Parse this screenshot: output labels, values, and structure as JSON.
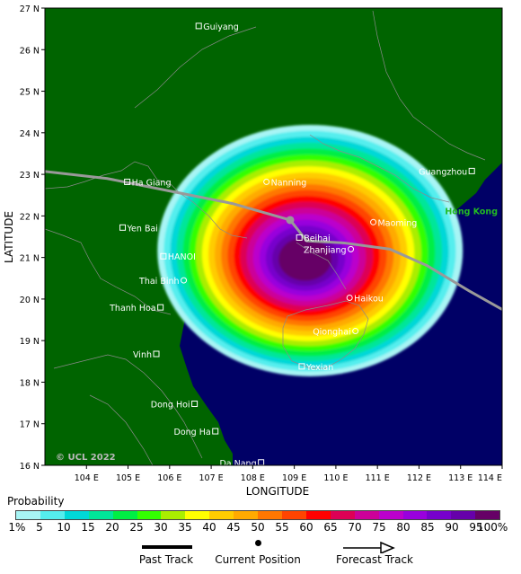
{
  "map": {
    "ylabel": "LATITUDE",
    "xlabel": "LONGITUDE",
    "lat_ticks": [
      {
        "value": 16,
        "label": "16 N"
      },
      {
        "value": 17,
        "label": "17 N"
      },
      {
        "value": 18,
        "label": "18 N"
      },
      {
        "value": 19,
        "label": "19 N"
      },
      {
        "value": 20,
        "label": "20 N"
      },
      {
        "value": 21,
        "label": "21 N"
      },
      {
        "value": 22,
        "label": "22 N"
      },
      {
        "value": 23,
        "label": "23 N"
      },
      {
        "value": 24,
        "label": "24 N"
      },
      {
        "value": 25,
        "label": "25 N"
      },
      {
        "value": 26,
        "label": "26 N"
      },
      {
        "value": 27,
        "label": "27 N"
      }
    ],
    "lon_ticks": [
      {
        "value": 104,
        "label": "104 E"
      },
      {
        "value": 105,
        "label": "105 E"
      },
      {
        "value": 106,
        "label": "106 E"
      },
      {
        "value": 107,
        "label": "107 E"
      },
      {
        "value": 108,
        "label": "108 E"
      },
      {
        "value": 109,
        "label": "109 E"
      },
      {
        "value": 110,
        "label": "110 E"
      },
      {
        "value": 111,
        "label": "111 E"
      },
      {
        "value": 112,
        "label": "112 E"
      },
      {
        "value": 113,
        "label": "113 E"
      },
      {
        "value": 114,
        "label": "114 E"
      }
    ],
    "lon_range": [
      103,
      114
    ],
    "lat_range": [
      16,
      27
    ],
    "copyright": "© UCL 2022",
    "cities": [
      {
        "name": "Guiyang",
        "lon": 106.7,
        "lat": 26.57,
        "marker": "square",
        "label_side": "right"
      },
      {
        "name": "Ha Giang",
        "lon": 104.98,
        "lat": 22.82,
        "marker": "square",
        "label_side": "right"
      },
      {
        "name": "Yen Bai",
        "lon": 104.87,
        "lat": 21.72,
        "marker": "square",
        "label_side": "right"
      },
      {
        "name": "HANOI",
        "lon": 105.85,
        "lat": 21.03,
        "marker": "square",
        "label_side": "right"
      },
      {
        "name": "Thai Binh",
        "lon": 106.34,
        "lat": 20.45,
        "marker": "circle",
        "label_side": "left"
      },
      {
        "name": "Thanh Hoa",
        "lon": 105.78,
        "lat": 19.8,
        "marker": "square",
        "label_side": "left"
      },
      {
        "name": "Vinh",
        "lon": 105.68,
        "lat": 18.68,
        "marker": "square",
        "label_side": "left"
      },
      {
        "name": "Dong Hoi",
        "lon": 106.6,
        "lat": 17.48,
        "marker": "square",
        "label_side": "left"
      },
      {
        "name": "Dong Ha",
        "lon": 107.1,
        "lat": 16.82,
        "marker": "square",
        "label_side": "left"
      },
      {
        "name": "Da Nang",
        "lon": 108.2,
        "lat": 16.07,
        "marker": "square",
        "label_side": "left"
      },
      {
        "name": "Nanning",
        "lon": 108.33,
        "lat": 22.82,
        "marker": "circle",
        "label_side": "right"
      },
      {
        "name": "Beihai",
        "lon": 109.12,
        "lat": 21.48,
        "marker": "square",
        "label_side": "right"
      },
      {
        "name": "Zhanjiang",
        "lon": 110.36,
        "lat": 21.2,
        "marker": "circle",
        "label_side": "left"
      },
      {
        "name": "Maoming",
        "lon": 110.9,
        "lat": 21.85,
        "marker": "circle",
        "label_side": "right"
      },
      {
        "name": "Haikou",
        "lon": 110.33,
        "lat": 20.03,
        "marker": "circle",
        "label_side": "right"
      },
      {
        "name": "Qionghai",
        "lon": 110.47,
        "lat": 19.23,
        "marker": "circle",
        "label_side": "left"
      },
      {
        "name": "Yexian",
        "lon": 109.18,
        "lat": 18.38,
        "marker": "square",
        "label_side": "right"
      },
      {
        "name": "Guangzhou",
        "lon": 113.27,
        "lat": 23.08,
        "marker": "square",
        "label_side": "left"
      },
      {
        "name": "Hong Kong",
        "lon": 114.0,
        "lat": 22.13,
        "marker": "none",
        "label_side": "left",
        "color": "#22bb22"
      }
    ],
    "past_track": [
      [
        103,
        23.07
      ],
      [
        104.5,
        22.9
      ],
      [
        106,
        22.6
      ],
      [
        107.5,
        22.3
      ],
      [
        108.9,
        21.9
      ]
    ],
    "current_position": [
      108.9,
      21.9
    ],
    "forecast_track": [
      [
        108.9,
        21.9
      ],
      [
        109.3,
        21.4
      ],
      [
        110.2,
        21.35
      ],
      [
        111.3,
        21.2
      ],
      [
        112.2,
        20.8
      ],
      [
        113.2,
        20.2
      ],
      [
        114,
        19.75
      ]
    ],
    "colors": {
      "land": "#006400",
      "sea": "#000066",
      "border": "#8a8a8a",
      "track": "#999999"
    }
  },
  "legend": {
    "title": "Probability",
    "ticks": [
      "1%",
      "5",
      "10",
      "15",
      "20",
      "25",
      "30",
      "35",
      "40",
      "45",
      "50",
      "55",
      "60",
      "65",
      "70",
      "75",
      "80",
      "85",
      "90",
      "95",
      "100%"
    ],
    "colors": [
      "#a8f5f5",
      "#55eeee",
      "#00d8d8",
      "#00e699",
      "#00ee44",
      "#33ff00",
      "#aaee00",
      "#ffff00",
      "#ffcc00",
      "#ffaa00",
      "#ff7700",
      "#ff4400",
      "#ff0000",
      "#dd0055",
      "#cc0099",
      "#bb00cc",
      "#9900dd",
      "#7700cc",
      "#6600aa",
      "#660066"
    ],
    "past_track_label": "Past Track",
    "current_position_label": "Current Position",
    "forecast_track_label": "Forecast Track"
  }
}
